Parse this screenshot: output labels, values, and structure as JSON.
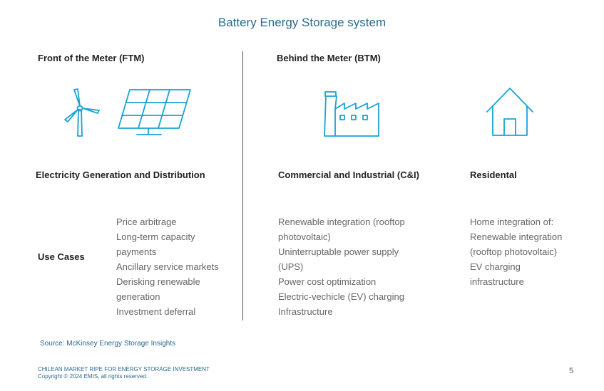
{
  "title": "Battery Energy Storage system",
  "ftm": {
    "heading": "Front of the Meter (FTM)",
    "category": "Electricity Generation and Distribution",
    "use_cases_label": "Use Cases",
    "use_cases": [
      "Price arbitrage",
      "Long-term capacity",
      "payments",
      "Ancillary service markets",
      "Derisking renewable",
      "generation",
      "Investment deferral"
    ]
  },
  "btm": {
    "heading": "Behind the Meter (BTM)",
    "ci": {
      "category": "Commercial and Industrial (C&I)",
      "use_cases": [
        "Renewable integration (rooftop",
        "photovoltaic)",
        "Uninterruptable power supply",
        "(UPS)",
        "Power cost optimization",
        "Electric-vechicle (EV) charging",
        "Infrastructure"
      ]
    },
    "residential": {
      "category": "Residental",
      "use_cases": [
        "Home integration of:",
        "Renewable integration",
        "(rooftop photovoltaic)",
        "EV charging",
        "infrastructure"
      ]
    }
  },
  "icons": [
    "wind-turbine-icon",
    "solar-panel-icon",
    "factory-icon",
    "house-icon"
  ],
  "accent_color": "#1aa3d4",
  "source": "Source: McKinsey Energy Storage Insights",
  "footer": {
    "line1": "CHILEAN MARKET RIPE FOR ENERGY STORAGE INVESTMENT",
    "line2": "Copyright © 2024 EMIS, all rights reserved."
  },
  "page_number": "5"
}
